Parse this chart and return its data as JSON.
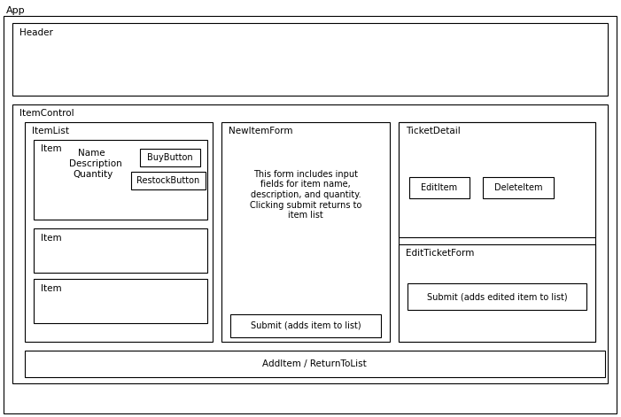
{
  "bg_color": "#ffffff",
  "border_color": "#000000",
  "text_color": "#000000",
  "fig_width": 7.01,
  "fig_height": 4.71,
  "app_label": "App",
  "header_label": "Header",
  "item_control_label": "ItemControl",
  "additem_label": "AddItem / ReturnToList",
  "item_list_label": "ItemList",
  "new_item_form_label": "NewItemForm",
  "ticket_detail_label": "TicketDetail",
  "edit_ticket_form_label": "EditTicketForm",
  "item_inner_label": "Item",
  "name_label": "Name",
  "description_label": "Description",
  "quantity_label": "Quantity",
  "buy_button_label": "BuyButton",
  "restock_button_label": "RestockButton",
  "item2_label": "Item",
  "item3_label": "Item",
  "new_item_text": "This form includes input\nfields for item name,\ndescription, and quantity.\nClicking submit returns to\nitem list",
  "submit1_label": "Submit (adds item to list)",
  "edit_item_label": "EditItem",
  "delete_item_label": "DeleteItem",
  "submit2_label": "Submit (adds edited item to list)",
  "font_size_label": 7.5,
  "font_size_text": 7,
  "font_size_app": 8,
  "font_size_button": 7
}
